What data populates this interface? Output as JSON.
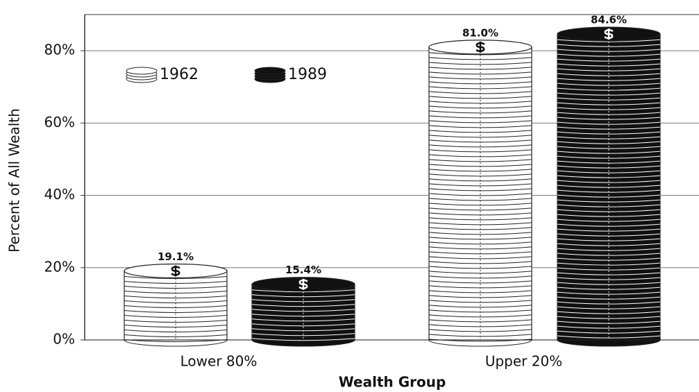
{
  "chart_data": {
    "type": "bar",
    "x_label": "Wealth Group",
    "y_label": "Percent of All Wealth",
    "categories": [
      "Lower 80%",
      "Upper 20%"
    ],
    "series": [
      {
        "name": "1962",
        "color": "#ffffff",
        "values": [
          19.1,
          81.0
        ],
        "value_labels": [
          "19.1%",
          "81.0%"
        ]
      },
      {
        "name": "1989",
        "color": "#111111",
        "values": [
          15.4,
          84.6
        ],
        "value_labels": [
          "15.4%",
          "84.6%"
        ]
      }
    ],
    "ylim": [
      0,
      90
    ],
    "yticks": [
      {
        "value": 0,
        "label": "0%"
      },
      {
        "value": 20,
        "label": "20%"
      },
      {
        "value": 40,
        "label": "40%"
      },
      {
        "value": 60,
        "label": "60%"
      },
      {
        "value": 80,
        "label": "80%"
      }
    ],
    "grid": true,
    "legend": "upper left"
  }
}
